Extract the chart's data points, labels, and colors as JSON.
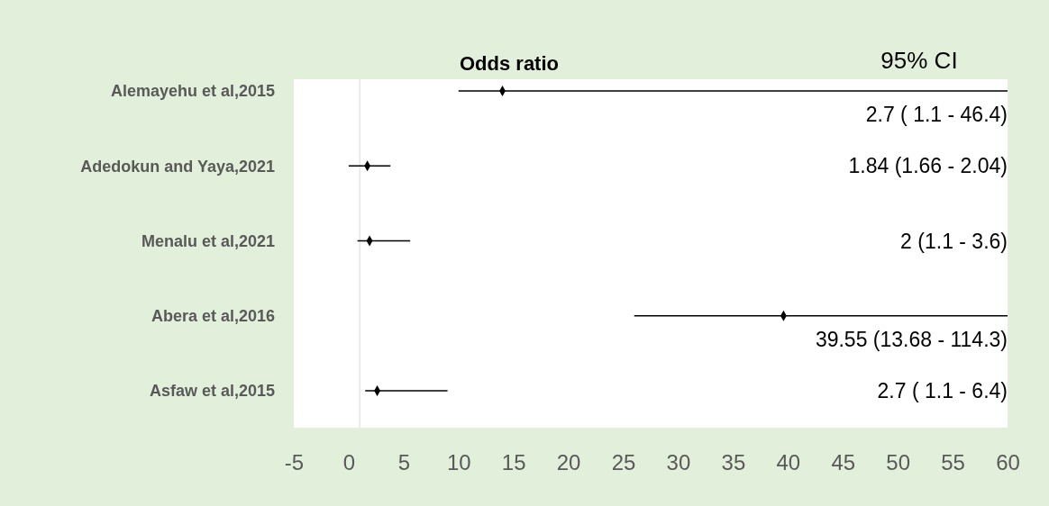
{
  "chart_data": {
    "type": "scatter",
    "orientation": "horizontal",
    "title": "Odds ratio",
    "annotations": [
      "95% CI",
      "2.7 ( 1.1 -  46.4)",
      "1.84 (1.66 - 2.04)",
      "2 (1.1 - 3.6)",
      "39.55 (13.68 - 114.3)",
      "2.7 ( 1.1 -  6.4)"
    ],
    "categories": [
      "Alemayehu et al,2015",
      "Adedokun and Yaya,2021",
      "Menalu et al,2021",
      "Abera et al,2016",
      "Asfaw et al,2015"
    ],
    "values": [
      14,
      1.7,
      1.9,
      39.6,
      2.6
    ],
    "errors": [
      [
        10,
        60
      ],
      [
        0,
        3.8
      ],
      [
        0.8,
        5.6
      ],
      [
        26,
        60
      ],
      [
        1.5,
        9
      ]
    ],
    "color": "#000000",
    "marker": "diamond",
    "xlim": [
      -5,
      60
    ],
    "xticks": [
      -5,
      0,
      5,
      10,
      15,
      20,
      25,
      30,
      35,
      40,
      45,
      50,
      55,
      60
    ],
    "ref_lines": [
      {
        "axis": "x",
        "value": 1,
        "color": "#d9d9d9"
      }
    ],
    "grid": false
  }
}
